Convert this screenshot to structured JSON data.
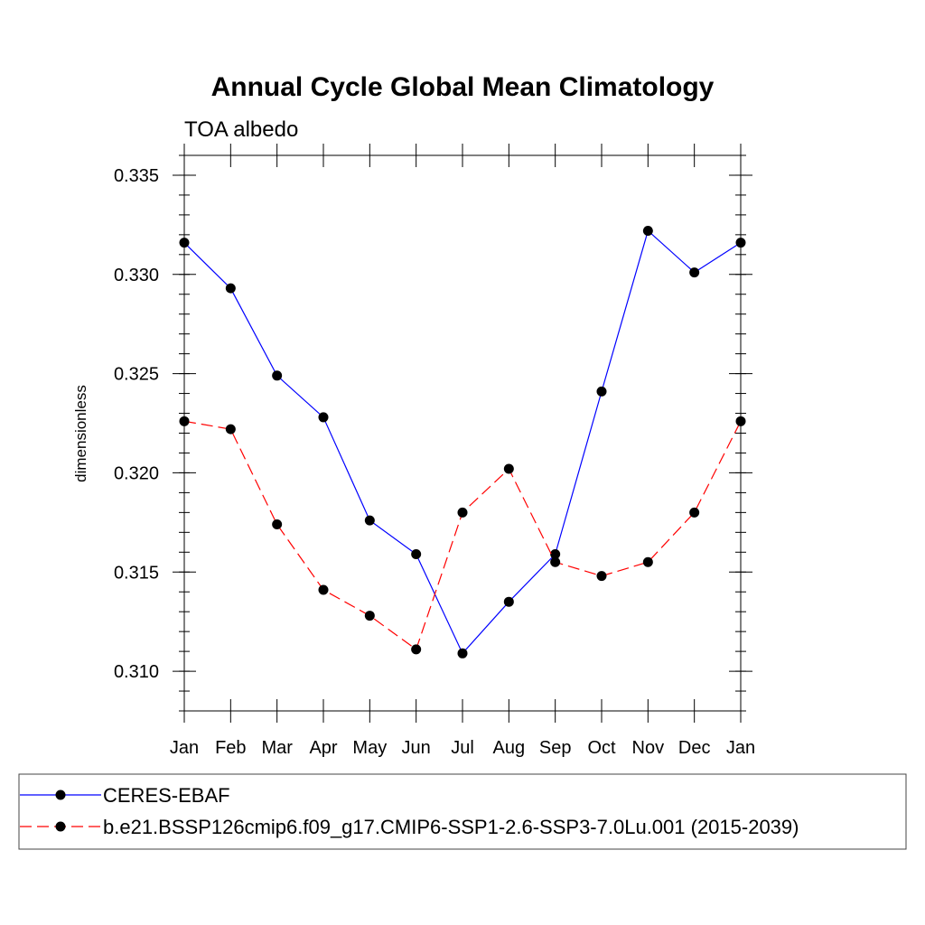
{
  "chart_data": {
    "type": "line",
    "title": "Annual Cycle Global Mean Climatology",
    "subtitle": "TOA albedo",
    "xlabel": "",
    "ylabel": "dimensionless",
    "categories": [
      "Jan",
      "Feb",
      "Mar",
      "Apr",
      "May",
      "Jun",
      "Jul",
      "Aug",
      "Sep",
      "Oct",
      "Nov",
      "Dec",
      "Jan"
    ],
    "ylim": [
      0.308,
      0.336
    ],
    "yticks": [
      0.31,
      0.315,
      0.32,
      0.325,
      0.33,
      0.335
    ],
    "ytick_labels": [
      "0.310",
      "0.315",
      "0.320",
      "0.325",
      "0.330",
      "0.335"
    ],
    "grid": false,
    "legend_position": "bottom",
    "series": [
      {
        "name": "CERES-EBAF",
        "color": "#0000ff",
        "style": "solid",
        "marker": "filled-circle",
        "values": [
          0.3316,
          0.3293,
          0.3249,
          0.3228,
          0.3176,
          0.3159,
          0.3109,
          0.3135,
          0.3159,
          0.3241,
          0.3322,
          0.3301,
          0.3316
        ]
      },
      {
        "name": "b.e21.BSSP126cmip6.f09_g17.CMIP6-SSP1-2.6-SSP3-7.0Lu.001 (2015-2039)",
        "color": "#ff0000",
        "style": "dashed",
        "marker": "filled-circle",
        "values": [
          0.3226,
          0.3222,
          0.3174,
          0.3141,
          0.3128,
          0.3111,
          0.318,
          0.3202,
          0.3155,
          0.3148,
          0.3155,
          0.318,
          0.3226
        ]
      }
    ]
  }
}
